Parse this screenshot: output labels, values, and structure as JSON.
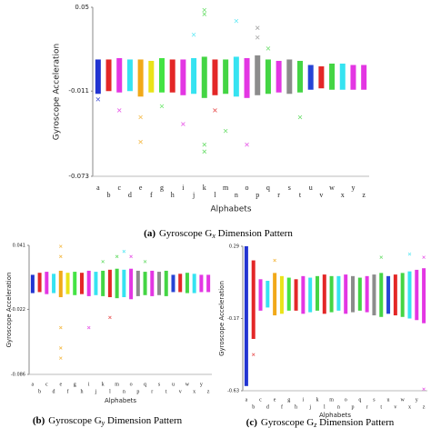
{
  "chart_data": [
    {
      "type": "strip",
      "ylabel": "Gyroscope Acceleration",
      "xlabel": "Alphabets",
      "categories": [
        "a",
        "b",
        "c",
        "d",
        "e",
        "f",
        "g",
        "h",
        "i",
        "j",
        "k",
        "l",
        "m",
        "n",
        "o",
        "p",
        "q",
        "r",
        "s",
        "t",
        "u",
        "v",
        "w",
        "x",
        "y",
        "z"
      ],
      "colors": [
        "#0a1ecc",
        "#e01010",
        "#e020e0",
        "#20e0f0",
        "#f0a000",
        "#e8e000",
        "#30e030",
        "#e01010",
        "#e020e0",
        "#20e0f0",
        "#30d030",
        "#e01010",
        "#30d030",
        "#20e0f0",
        "#e020e0",
        "#808080",
        "#30d030",
        "#e020e0",
        "#808080",
        "#30d030",
        "#1030d0",
        "#e01010",
        "#30d030",
        "#20e0f0",
        "#e020e0",
        "#e020e0"
      ],
      "ylim": [
        -0.073,
        0.05
      ],
      "yticks": [
        0.05,
        -0.011,
        -0.073
      ],
      "band_high": [
        0.012,
        0.012,
        0.013,
        0.012,
        0.012,
        0.011,
        0.013,
        0.012,
        0.012,
        0.013,
        0.014,
        0.012,
        0.012,
        0.014,
        0.013,
        0.015,
        0.012,
        0.011,
        0.012,
        0.011,
        0.008,
        0.007,
        0.009,
        0.009,
        0.008,
        0.008
      ],
      "band_low": [
        -0.013,
        -0.011,
        -0.012,
        -0.011,
        -0.015,
        -0.012,
        -0.012,
        -0.012,
        -0.014,
        -0.013,
        -0.016,
        -0.014,
        -0.013,
        -0.015,
        -0.016,
        -0.014,
        -0.013,
        -0.012,
        -0.013,
        -0.012,
        -0.01,
        -0.009,
        -0.01,
        -0.01,
        -0.01,
        -0.01
      ],
      "outliers": [
        [
          -0.017
        ],
        [],
        [
          -0.025
        ],
        [],
        [
          -0.048,
          -0.03
        ],
        [],
        [
          -0.022
        ],
        [],
        [
          -0.035
        ],
        [
          0.03
        ],
        [
          0.048,
          0.045,
          -0.05,
          -0.055
        ],
        [
          -0.025
        ],
        [
          -0.04
        ],
        [
          0.04
        ],
        [
          -0.05
        ],
        [
          0.035,
          0.028
        ],
        [
          0.02
        ],
        [],
        [],
        [
          -0.03
        ],
        [],
        [],
        [],
        [],
        [],
        []
      ],
      "caption_label": "(a)",
      "caption_pre": "Gyroscope G",
      "caption_sub": "x",
      "caption_post": " Dimension Pattern"
    },
    {
      "type": "strip",
      "ylabel": "Gyroscope Acceleration",
      "xlabel": "Alphabets",
      "categories": [
        "a",
        "b",
        "c",
        "d",
        "e",
        "f",
        "g",
        "h",
        "i",
        "j",
        "k",
        "l",
        "m",
        "n",
        "o",
        "p",
        "q",
        "r",
        "s",
        "t",
        "u",
        "v",
        "w",
        "x",
        "y",
        "z"
      ],
      "colors": [
        "#0a1ecc",
        "#e01010",
        "#e020e0",
        "#20e0f0",
        "#f0a000",
        "#e8e000",
        "#30e030",
        "#e01010",
        "#e020e0",
        "#20e0f0",
        "#30d030",
        "#e01010",
        "#30d030",
        "#20e0f0",
        "#e020e0",
        "#808080",
        "#30d030",
        "#e020e0",
        "#808080",
        "#30d030",
        "#1030d0",
        "#e01010",
        "#30d030",
        "#20e0f0",
        "#e020e0",
        "#e020e0"
      ],
      "ylim": [
        -0.086,
        0.041
      ],
      "yticks": [
        0.041,
        -0.022,
        -0.086
      ],
      "band_high": [
        0.012,
        0.014,
        0.015,
        0.013,
        0.016,
        0.014,
        0.015,
        0.014,
        0.016,
        0.015,
        0.016,
        0.017,
        0.018,
        0.017,
        0.018,
        0.016,
        0.015,
        0.016,
        0.015,
        0.016,
        0.012,
        0.013,
        0.014,
        0.013,
        0.012,
        0.012
      ],
      "band_low": [
        -0.006,
        -0.005,
        -0.007,
        -0.006,
        -0.01,
        -0.007,
        -0.008,
        -0.007,
        -0.009,
        -0.008,
        -0.009,
        -0.01,
        -0.011,
        -0.01,
        -0.012,
        -0.009,
        -0.008,
        -0.009,
        -0.008,
        -0.009,
        -0.005,
        -0.005,
        -0.006,
        -0.006,
        -0.005,
        -0.005
      ],
      "outliers": [
        [],
        [],
        [],
        [],
        [
          0.04,
          0.03,
          -0.04,
          -0.06,
          -0.07
        ],
        [],
        [],
        [],
        [
          -0.04
        ],
        [],
        [
          0.025
        ],
        [
          -0.03
        ],
        [
          0.03
        ],
        [
          0.035
        ],
        [
          0.03
        ],
        [],
        [
          0.025
        ],
        [],
        [],
        [],
        [],
        [],
        [],
        [],
        [],
        []
      ],
      "caption_label": "(b)",
      "caption_pre": "Gyroscope G",
      "caption_sub": "y",
      "caption_post": " Dimension Pattern"
    },
    {
      "type": "strip",
      "ylabel": "Gyroscope Acceleration",
      "xlabel": "Alphabets",
      "categories": [
        "a",
        "b",
        "c",
        "d",
        "e",
        "f",
        "g",
        "h",
        "i",
        "j",
        "k",
        "l",
        "m",
        "n",
        "o",
        "p",
        "q",
        "r",
        "s",
        "t",
        "u",
        "v",
        "w",
        "x",
        "y",
        "z"
      ],
      "colors": [
        "#0a1ecc",
        "#e01010",
        "#e020e0",
        "#20e0f0",
        "#f0a000",
        "#e8e000",
        "#30e030",
        "#e01010",
        "#e020e0",
        "#20e0f0",
        "#30d030",
        "#e01010",
        "#30d030",
        "#20e0f0",
        "#e020e0",
        "#808080",
        "#30d030",
        "#e020e0",
        "#808080",
        "#30d030",
        "#1030d0",
        "#e01010",
        "#30d030",
        "#20e0f0",
        "#e020e0",
        "#e020e0"
      ],
      "ylim": [
        -0.63,
        0.29
      ],
      "yticks": [
        0.29,
        -0.17,
        -0.63
      ],
      "band_high": [
        0.29,
        0.2,
        0.08,
        0.07,
        0.12,
        0.1,
        0.09,
        0.08,
        0.1,
        0.09,
        0.1,
        0.11,
        0.1,
        0.1,
        0.11,
        0.1,
        0.09,
        0.1,
        0.11,
        0.12,
        0.1,
        0.11,
        0.12,
        0.13,
        0.14,
        0.15
      ],
      "band_low": [
        -0.6,
        -0.3,
        -0.12,
        -0.1,
        -0.15,
        -0.14,
        -0.12,
        -0.12,
        -0.14,
        -0.13,
        -0.12,
        -0.14,
        -0.13,
        -0.12,
        -0.14,
        -0.13,
        -0.12,
        -0.13,
        -0.15,
        -0.16,
        -0.14,
        -0.15,
        -0.16,
        -0.17,
        -0.18,
        -0.2
      ],
      "outliers": [
        [],
        [
          -0.4
        ],
        [],
        [],
        [
          0.2
        ],
        [],
        [],
        [],
        [],
        [],
        [],
        [],
        [],
        [],
        [],
        [],
        [],
        [],
        [],
        [
          0.22
        ],
        [],
        [],
        [],
        [
          0.24
        ],
        [],
        [
          0.22,
          -0.62
        ]
      ],
      "caption_label": "(c)",
      "caption_pre": "Gyroscope G",
      "caption_sub": "z",
      "caption_post": " Dimension Pattern"
    }
  ]
}
